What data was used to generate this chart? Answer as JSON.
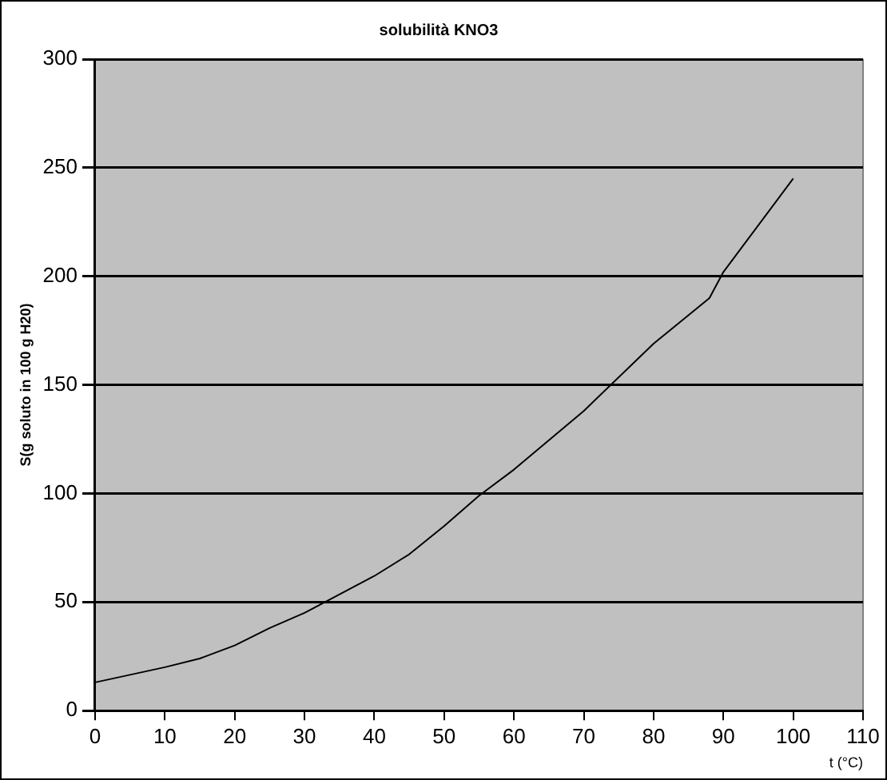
{
  "chart_data": {
    "type": "line",
    "title": "solubilità KNO3",
    "xlabel": "t (°C)",
    "ylabel": "S(g soluto in 100 g H20)",
    "x": [
      0,
      10,
      15,
      20,
      25,
      30,
      40,
      45,
      50,
      55,
      60,
      70,
      80,
      88,
      90,
      100
    ],
    "series": [
      {
        "color": "#000000",
        "values": [
          13,
          20,
          24,
          30,
          38,
          45,
          62,
          72,
          85,
          99,
          111,
          138,
          169,
          190,
          202,
          245
        ]
      }
    ],
    "xlim": [
      0,
      110
    ],
    "xticks": [
      0,
      10,
      20,
      30,
      40,
      50,
      60,
      70,
      80,
      90,
      100,
      110
    ],
    "ylim": [
      0,
      300
    ],
    "yticks": [
      0,
      50,
      100,
      150,
      200,
      250,
      300
    ],
    "grid": "y",
    "legend": false,
    "marker": "none",
    "line_style": "solid"
  }
}
